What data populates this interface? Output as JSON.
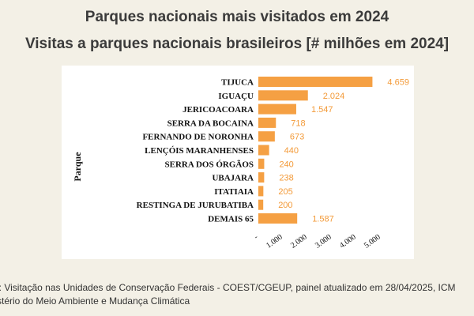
{
  "header": {
    "title": "Parques nacionais mais visitados em 2024",
    "subtitle": "Visitas a parques nacionais brasileiros [# milhões em 2024]"
  },
  "colors": {
    "bar": "#f5a043",
    "value_label": "#f39a38"
  },
  "chart_data": {
    "type": "bar",
    "orientation": "horizontal",
    "title": "Visitas a parques nacionais brasileiros [# milhões em 2024]",
    "ylabel": "Parque",
    "xlabel": "",
    "categories": [
      "TIJUCA",
      "IGUAÇU",
      "JERICOACOARA",
      "SERRA DA BOCAINA",
      "FERNANDO DE NORONHA",
      "LENÇÓIS MARANHENSES",
      "SERRA DOS ÓRGÃOS",
      "UBAJARA",
      "ITATIAIA",
      "RESTINGA DE JURUBATIBA",
      "DEMAIS 65"
    ],
    "values": [
      4659,
      2024,
      1547,
      718,
      673,
      440,
      240,
      238,
      205,
      200,
      1587
    ],
    "value_labels": [
      "4.659",
      "2.024",
      "1.547",
      "718",
      "673",
      "440",
      "240",
      "238",
      "205",
      "200",
      "1.587"
    ],
    "xticks": [
      0,
      1000,
      2000,
      3000,
      4000,
      5000
    ],
    "xtick_labels": [
      "-",
      "1.000",
      "2.000",
      "3.000",
      "4.000",
      "5.000"
    ],
    "xlim": [
      0,
      5000
    ],
    "grid": false
  },
  "source": {
    "line1": "e: Visitação nas Unidades de Conservação Federais - COEST/CGEUP, painel atualizado em 28/04/2025, ICM",
    "line2": "stério do Meio Ambiente e Mudança Climática"
  }
}
